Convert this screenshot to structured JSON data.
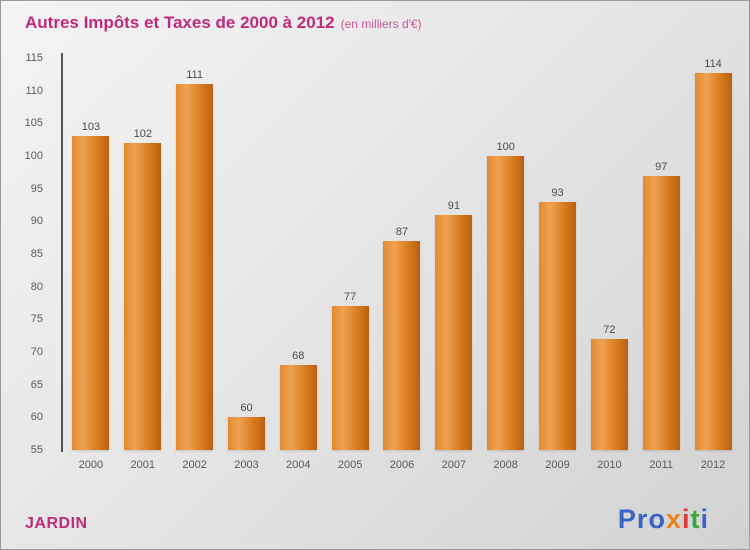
{
  "title": "Autres Impôts et Taxes de 2000 à 2012",
  "subtitle": "(en milliers d'€)",
  "footer": {
    "company": "JARDIN",
    "logo_letters": [
      {
        "ch": "P",
        "color": "#3c64c8"
      },
      {
        "ch": "r",
        "color": "#3c64c8"
      },
      {
        "ch": "o",
        "color": "#3c64c8"
      },
      {
        "ch": "x",
        "color": "#f0821a"
      },
      {
        "ch": "i",
        "color": "#e03c3c"
      },
      {
        "ch": "t",
        "color": "#3da53d"
      },
      {
        "ch": "i",
        "color": "#3c64c8"
      }
    ]
  },
  "colors": {
    "title": "#c12a7c",
    "bar_light": "#f0a252",
    "bar_dark": "#bb6012",
    "axis": "#555555",
    "tick_label": "#5a5a5a",
    "value_label": "#4d4d4d",
    "background_top": "#f4f4f4",
    "background_bottom": "#d2d2d2"
  },
  "chart_data": {
    "type": "bar",
    "title": "Autres Impôts et Taxes de 2000 à 2012",
    "subtitle": "(en milliers d'€)",
    "categories": [
      "2000",
      "2001",
      "2002",
      "2003",
      "2004",
      "2005",
      "2006",
      "2007",
      "2008",
      "2009",
      "2010",
      "2011",
      "2012"
    ],
    "values": [
      103,
      102,
      111,
      60,
      68,
      77,
      87,
      91,
      100,
      93,
      72,
      97,
      114
    ],
    "xlabel": "",
    "ylabel": "",
    "ylim": [
      55,
      115
    ],
    "ytick_step": 5,
    "grid": false,
    "legend": false,
    "bar_color": "orange-gradient"
  }
}
